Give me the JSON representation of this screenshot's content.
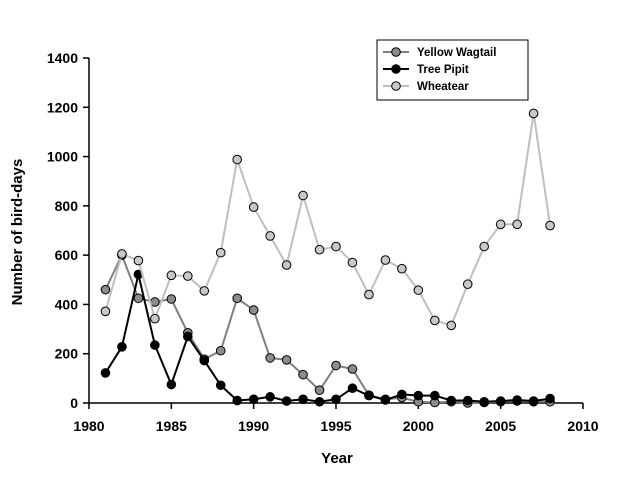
{
  "chart_data": {
    "type": "line",
    "title": "",
    "xlabel": "Year",
    "ylabel": "Number of bird-days",
    "xlim": [
      1980,
      2010
    ],
    "ylim": [
      0,
      1400
    ],
    "xticks": [
      1980,
      1985,
      1990,
      1995,
      2000,
      2005,
      2010
    ],
    "yticks": [
      0,
      200,
      400,
      600,
      800,
      1000,
      1200,
      1400
    ],
    "grid": false,
    "legend_position": "top-right",
    "x": [
      1981,
      1982,
      1983,
      1984,
      1985,
      1986,
      1987,
      1988,
      1989,
      1990,
      1991,
      1992,
      1993,
      1994,
      1995,
      1996,
      1997,
      1998,
      1999,
      2000,
      2001,
      2002,
      2003,
      2004,
      2005,
      2006,
      2007,
      2008
    ],
    "series": [
      {
        "name": "Yellow Wagtail",
        "line_color": "#7f7f7f",
        "marker_color": "#8c8c8c",
        "values": [
          460,
          600,
          425,
          410,
          422,
          285,
          178,
          212,
          425,
          377,
          183,
          175,
          115,
          52,
          152,
          138,
          32,
          15,
          22,
          5,
          2,
          5,
          0,
          2,
          5,
          8,
          5,
          5
        ]
      },
      {
        "name": "Tree Pipit",
        "line_color": "#000000",
        "marker_color": "#000000",
        "values": [
          122,
          228,
          522,
          235,
          75,
          270,
          172,
          72,
          10,
          15,
          25,
          8,
          15,
          5,
          15,
          60,
          30,
          12,
          35,
          30,
          30,
          10,
          10,
          5,
          8,
          12,
          8,
          18
        ]
      },
      {
        "name": "Wheatear",
        "line_color": "#bfbfbf",
        "marker_color": "#c8c8c8",
        "values": [
          372,
          605,
          578,
          342,
          518,
          515,
          455,
          610,
          988,
          795,
          678,
          560,
          842,
          622,
          635,
          570,
          440,
          580,
          545,
          458,
          335,
          315,
          482,
          635,
          725,
          725,
          1175,
          720
        ]
      }
    ]
  }
}
